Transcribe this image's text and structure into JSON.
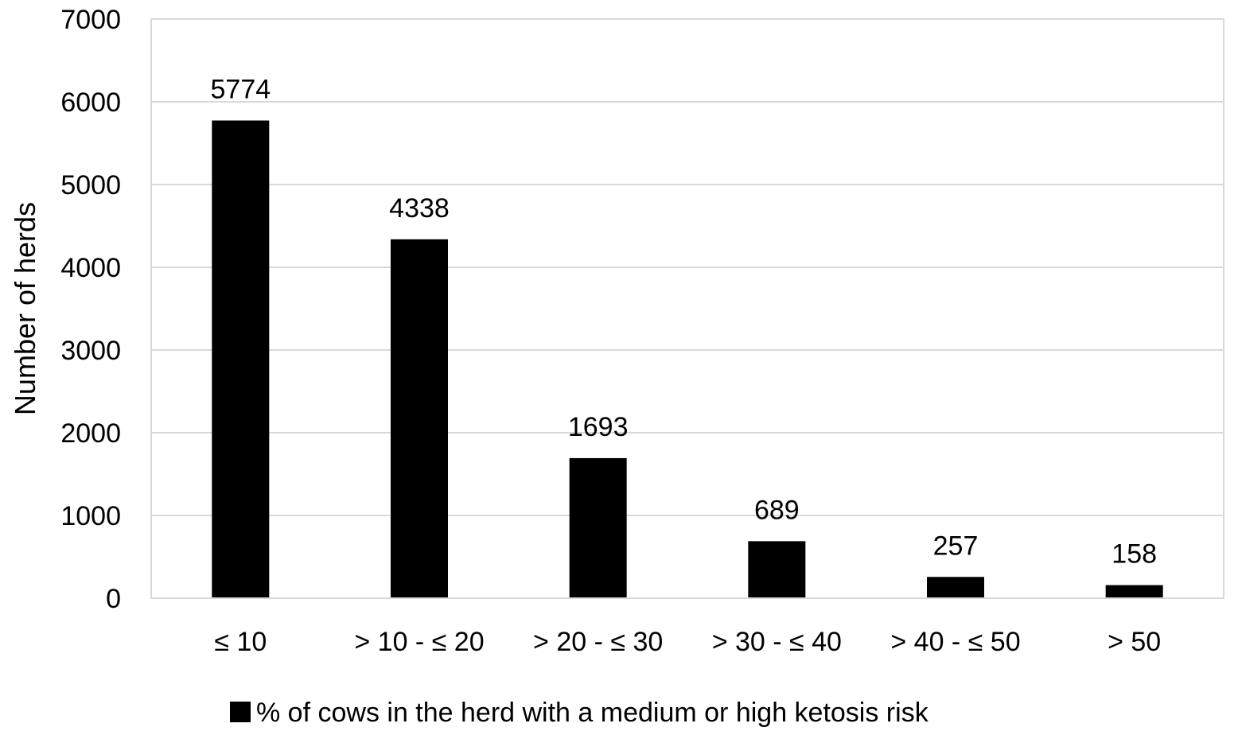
{
  "chart_data": {
    "type": "bar",
    "title": "",
    "xlabel": "",
    "ylabel": "Number of herds",
    "ylim": [
      0,
      7000
    ],
    "yticks": [
      0,
      1000,
      2000,
      3000,
      4000,
      5000,
      6000,
      7000
    ],
    "grid": true,
    "legend_placement": "bottom",
    "categories": [
      "≤ 10",
      "> 10 - ≤ 20",
      "> 20 - ≤ 30",
      "> 30 - ≤ 40",
      "> 40 - ≤ 50",
      "> 50"
    ],
    "series": [
      {
        "name": "% of cows in the herd with a medium or high ketosis risk",
        "values": [
          5774,
          4338,
          1693,
          689,
          257,
          158
        ],
        "color": "#000000"
      }
    ],
    "data_labels": [
      "5774",
      "4338",
      "1693",
      "689",
      "257",
      "158"
    ]
  }
}
